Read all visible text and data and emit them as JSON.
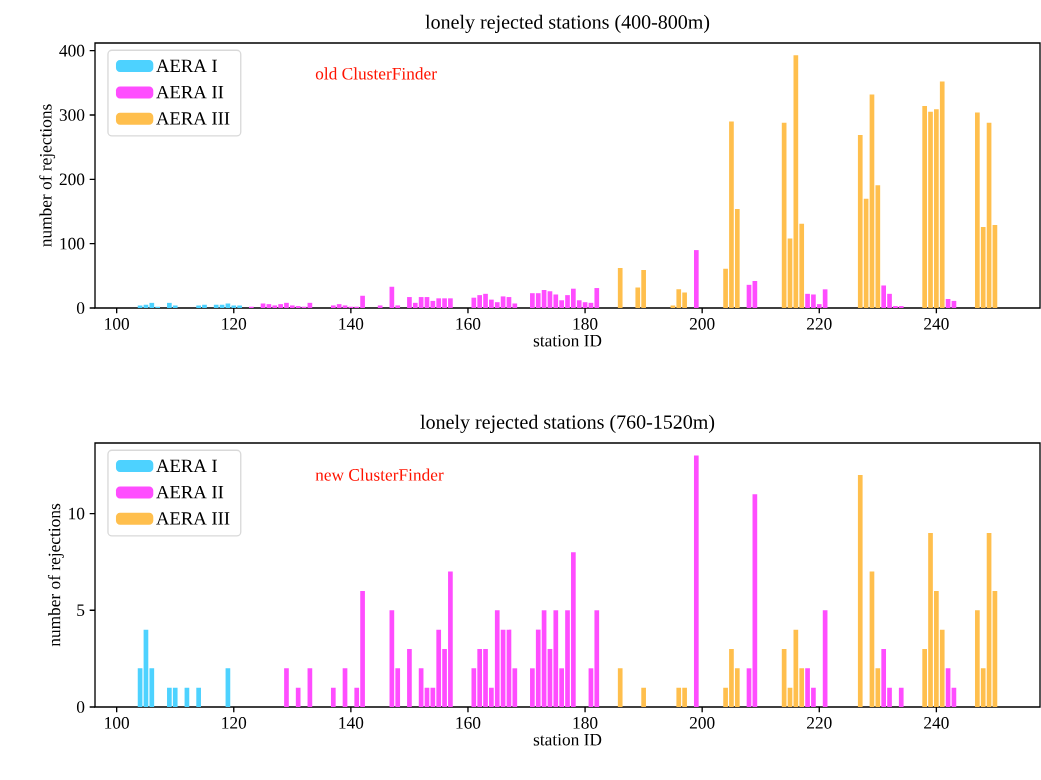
{
  "chart_data": [
    {
      "type": "bar",
      "title": "lonely rejected stations (400-800m)",
      "xlabel": "station ID",
      "ylabel": "number of rejections",
      "annotations": [
        "old ClusterFinder"
      ],
      "legend": "top left",
      "xlim": [
        96.3,
        257.7
      ],
      "xticks": [
        100,
        120,
        140,
        160,
        180,
        200,
        220,
        240
      ],
      "ylim": [
        0,
        412
      ],
      "yticks": [
        0,
        100,
        200,
        300,
        400
      ],
      "series": [
        {
          "name": "AERA I",
          "color": "#4dd2ff",
          "x": [
            104,
            105,
            106,
            107,
            109,
            110,
            114,
            115,
            117,
            118,
            119,
            120,
            121
          ],
          "values": [
            4,
            5,
            8,
            2,
            8,
            4,
            4,
            5,
            5,
            5,
            7,
            4,
            4
          ]
        },
        {
          "name": "AERA II",
          "color": "#ff4dff",
          "x": [
            123,
            125,
            126,
            127,
            128,
            129,
            130,
            131,
            132,
            133,
            137,
            138,
            139,
            140,
            141,
            142,
            145,
            147,
            148,
            150,
            151,
            152,
            153,
            154,
            155,
            156,
            157,
            161,
            162,
            163,
            164,
            165,
            166,
            167,
            168,
            171,
            172,
            173,
            174,
            175,
            176,
            177,
            178,
            179,
            180,
            181,
            182,
            199,
            208,
            209,
            218,
            219,
            220,
            221,
            231,
            232,
            233,
            234,
            242,
            243
          ],
          "values": [
            2,
            7,
            6,
            4,
            6,
            8,
            4,
            3,
            2,
            8,
            4,
            6,
            4,
            2,
            2,
            19,
            4,
            33,
            4,
            17,
            8,
            17,
            17,
            11,
            15,
            15,
            15,
            16,
            20,
            22,
            13,
            9,
            18,
            17,
            7,
            23,
            23,
            28,
            26,
            21,
            12,
            20,
            30,
            12,
            9,
            8,
            31,
            90,
            36,
            42,
            22,
            21,
            6,
            29,
            35,
            22,
            3,
            3,
            14,
            11
          ]
        },
        {
          "name": "AERA III",
          "color": "#ffbf4d",
          "x": [
            186,
            189,
            190,
            195,
            196,
            197,
            204,
            205,
            206,
            214,
            215,
            216,
            217,
            227,
            228,
            229,
            230,
            238,
            239,
            240,
            241,
            247,
            248,
            249,
            250
          ],
          "values": [
            62,
            32,
            59,
            4,
            29,
            24,
            61,
            290,
            154,
            288,
            108,
            393,
            131,
            269,
            170,
            332,
            191,
            314,
            305,
            309,
            352,
            304,
            126,
            288,
            129
          ]
        }
      ]
    },
    {
      "type": "bar",
      "title": "lonely rejected stations (760-1520m)",
      "xlabel": "station ID",
      "ylabel": "number of rejections",
      "annotations": [
        "new ClusterFinder"
      ],
      "legend": "top left",
      "xlim": [
        96.3,
        257.7
      ],
      "xticks": [
        100,
        120,
        140,
        160,
        180,
        200,
        220,
        240
      ],
      "ylim": [
        0,
        13.65
      ],
      "yticks": [
        0,
        5,
        10
      ],
      "series": [
        {
          "name": "AERA I",
          "color": "#4dd2ff",
          "x": [
            104,
            105,
            106,
            109,
            110,
            112,
            114,
            119
          ],
          "values": [
            2,
            4,
            2,
            1,
            1,
            1,
            1,
            2
          ]
        },
        {
          "name": "AERA II",
          "color": "#ff4dff",
          "x": [
            129,
            131,
            133,
            137,
            139,
            141,
            142,
            147,
            148,
            150,
            152,
            153,
            154,
            155,
            156,
            157,
            161,
            162,
            163,
            164,
            165,
            166,
            167,
            168,
            171,
            172,
            173,
            174,
            175,
            176,
            177,
            178,
            181,
            182,
            199,
            208,
            209,
            218,
            219,
            221,
            231,
            232,
            234,
            242,
            243
          ],
          "values": [
            2,
            1,
            2,
            1,
            2,
            1,
            6,
            5,
            2,
            3,
            2,
            1,
            1,
            4,
            3,
            7,
            2,
            3,
            3,
            1,
            5,
            4,
            4,
            2,
            2,
            4,
            5,
            3,
            5,
            2,
            5,
            8,
            2,
            5,
            13,
            2,
            11,
            2,
            1,
            5,
            3,
            1,
            1,
            2,
            1
          ]
        },
        {
          "name": "AERA III",
          "color": "#ffbf4d",
          "x": [
            186,
            190,
            196,
            197,
            204,
            205,
            206,
            214,
            215,
            216,
            217,
            227,
            229,
            230,
            238,
            239,
            240,
            241,
            247,
            248,
            249,
            250
          ],
          "values": [
            2,
            1,
            1,
            1,
            1,
            3,
            2,
            3,
            1,
            4,
            2,
            12,
            7,
            2,
            3,
            9,
            6,
            4,
            5,
            2,
            9,
            6
          ]
        }
      ]
    }
  ]
}
